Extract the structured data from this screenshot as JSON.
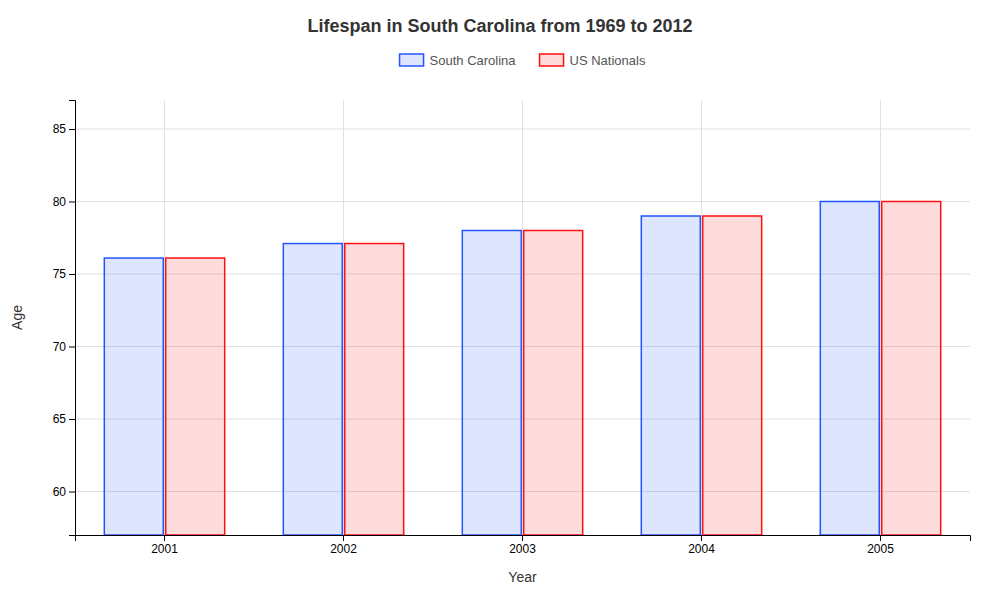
{
  "chart_data": {
    "type": "bar",
    "title": "Lifespan in South Carolina from 1969 to 2012",
    "x_label": "Year",
    "y_label": "Age",
    "categories": [
      "2001",
      "2002",
      "2003",
      "2004",
      "2005"
    ],
    "series": [
      {
        "name": "South Carolina",
        "color": "#2255ff",
        "values": [
          76.1,
          77.1,
          78.0,
          79.0,
          80.0
        ]
      },
      {
        "name": "US Nationals",
        "color": "#ff1111",
        "values": [
          76.1,
          77.1,
          78.0,
          79.0,
          80.0
        ]
      }
    ],
    "ylim": [
      57,
      87
    ],
    "yticks": [
      60,
      65,
      70,
      75,
      80,
      85
    ],
    "grid": true,
    "legend": "top"
  }
}
